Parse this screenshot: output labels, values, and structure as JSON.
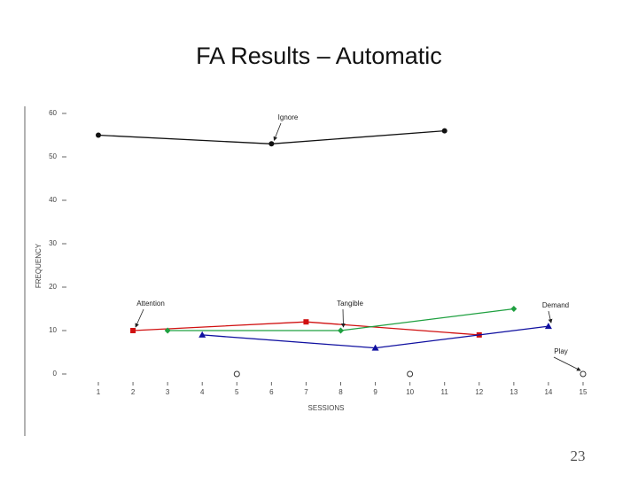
{
  "chart_data": {
    "type": "line",
    "title": "FA Results – Automatic",
    "x_label": "SESSIONS",
    "y_label": "FREQUENCY",
    "xlim": [
      1,
      15
    ],
    "xticks": [
      1,
      2,
      3,
      4,
      5,
      6,
      7,
      8,
      9,
      10,
      11,
      12,
      13,
      14,
      15
    ],
    "ylim": [
      0,
      60
    ],
    "yticks": [
      0,
      10,
      20,
      30,
      40,
      50,
      60
    ],
    "series": [
      {
        "name": "Ignore",
        "color": "#111111",
        "marker": "circle",
        "x": [
          1,
          6,
          11
        ],
        "values": [
          55,
          53,
          56
        ]
      },
      {
        "name": "Attention",
        "color": "#d01010",
        "marker": "square",
        "x": [
          2,
          7,
          12
        ],
        "values": [
          10,
          12,
          9
        ]
      },
      {
        "name": "Tangible",
        "color": "#1fa040",
        "marker": "diamond",
        "x": [
          3,
          8,
          13
        ],
        "values": [
          10,
          10,
          15
        ]
      },
      {
        "name": "Demand",
        "color": "#1010a0",
        "marker": "triangle",
        "x": [
          4,
          9,
          14
        ],
        "values": [
          9,
          6,
          11
        ]
      },
      {
        "name": "Play",
        "color": "#333333",
        "marker": "open-circle",
        "x": [
          5,
          10,
          15
        ],
        "values": [
          0,
          0,
          0
        ]
      }
    ]
  },
  "slide_number": "23"
}
